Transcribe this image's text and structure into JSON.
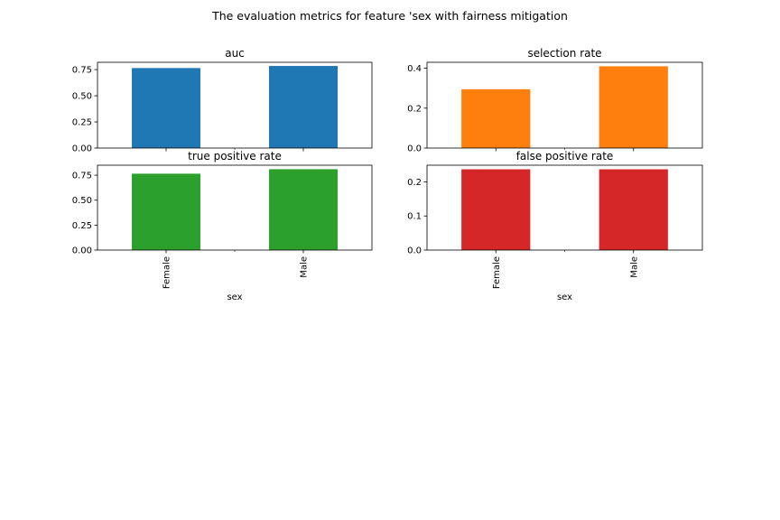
{
  "suptitle": "The evaluation metrics for feature 'sex with fairness mitigation",
  "chart_data": [
    {
      "type": "bar",
      "title": "auc",
      "categories": [
        "Female",
        "Male"
      ],
      "values": [
        0.765,
        0.785
      ],
      "ylim": [
        0,
        0.82
      ],
      "yticks": [
        0.0,
        0.25,
        0.5,
        0.75
      ],
      "ytick_labels": [
        "0.00",
        "0.25",
        "0.50",
        "0.75"
      ],
      "xlabel": "",
      "color": "#1f77b4"
    },
    {
      "type": "bar",
      "title": "selection rate",
      "categories": [
        "Female",
        "Male"
      ],
      "values": [
        0.295,
        0.41
      ],
      "ylim": [
        0,
        0.43
      ],
      "yticks": [
        0.0,
        0.2,
        0.4
      ],
      "ytick_labels": [
        "0.0",
        "0.2",
        "0.4"
      ],
      "xlabel": "",
      "color": "#ff7f0e"
    },
    {
      "type": "bar",
      "title": "true positive rate",
      "categories": [
        "Female",
        "Male"
      ],
      "values": [
        0.765,
        0.81
      ],
      "ylim": [
        0,
        0.85
      ],
      "yticks": [
        0.0,
        0.25,
        0.5,
        0.75
      ],
      "ytick_labels": [
        "0.00",
        "0.25",
        "0.50",
        "0.75"
      ],
      "xlabel": "sex",
      "color": "#2ca02c"
    },
    {
      "type": "bar",
      "title": "false positive rate",
      "categories": [
        "Female",
        "Male"
      ],
      "values": [
        0.237,
        0.237
      ],
      "ylim": [
        0,
        0.249
      ],
      "yticks": [
        0.0,
        0.1,
        0.2
      ],
      "ytick_labels": [
        "0.0",
        "0.1",
        "0.2"
      ],
      "xlabel": "sex",
      "color": "#d62728"
    }
  ]
}
